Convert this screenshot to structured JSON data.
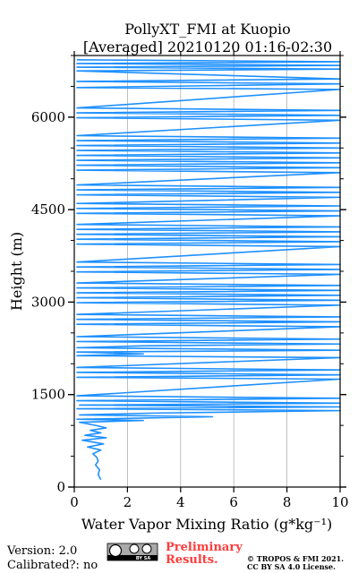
{
  "chart_data": {
    "type": "line",
    "title_line1": "PollyXT_FMI at Kuopio",
    "title_line2": "[Averaged] 20210120 01:16-02:30",
    "xlabel": "Water Vapor Mixing Ratio (g*kg⁻¹)",
    "ylabel": "Height (m)",
    "xlim": [
      0,
      10
    ],
    "ylim": [
      0,
      7000
    ],
    "xticks": [
      0,
      2,
      4,
      6,
      8,
      10
    ],
    "xtick_labels": [
      "0",
      "2",
      "4",
      "6",
      "8",
      "10"
    ],
    "yticks": [
      0,
      1500,
      3000,
      4500,
      6000
    ],
    "ytick_labels": [
      "0",
      "1500",
      "3000",
      "4500",
      "6000"
    ],
    "grid": "vertical",
    "series": [
      {
        "color": "#1e90ff",
        "points": [
          [
            1.0,
            120
          ],
          [
            0.9,
            200
          ],
          [
            0.95,
            280
          ],
          [
            0.8,
            360
          ],
          [
            0.9,
            420
          ],
          [
            0.85,
            480
          ],
          [
            0.7,
            540
          ],
          [
            1.0,
            600
          ],
          [
            0.5,
            650
          ],
          [
            1.1,
            700
          ],
          [
            0.3,
            760
          ],
          [
            1.2,
            800
          ],
          [
            0.4,
            840
          ],
          [
            1.0,
            880
          ],
          [
            0.6,
            920
          ],
          [
            1.2,
            960
          ],
          [
            0.8,
            1000
          ],
          [
            0.2,
            1050
          ],
          [
            2.6,
            1080
          ],
          [
            0.1,
            1100
          ],
          [
            5.2,
            1140
          ],
          [
            0.2,
            1170
          ],
          [
            3.0,
            1200
          ],
          [
            10.0,
            1240
          ],
          [
            0.1,
            1270
          ],
          [
            10.0,
            1300
          ],
          [
            0.2,
            1330
          ],
          [
            10.0,
            1360
          ],
          [
            0.1,
            1400
          ],
          [
            10.0,
            1440
          ],
          [
            0.1,
            1480
          ],
          [
            10.0,
            1750
          ],
          [
            0.1,
            1780
          ],
          [
            10.0,
            1820
          ],
          [
            0.1,
            1860
          ],
          [
            10.0,
            1900
          ],
          [
            0.1,
            1940
          ],
          [
            10.0,
            2100
          ],
          [
            0.1,
            2130
          ],
          [
            2.6,
            2160
          ],
          [
            0.1,
            2190
          ],
          [
            10.0,
            2220
          ],
          [
            0.1,
            2260
          ],
          [
            2.5,
            2290
          ],
          [
            10.0,
            2320
          ],
          [
            0.1,
            2360
          ],
          [
            10.0,
            2400
          ],
          [
            0.1,
            2440
          ],
          [
            10.0,
            2600
          ],
          [
            0.1,
            2640
          ],
          [
            10.0,
            2680
          ],
          [
            0.1,
            2720
          ],
          [
            10.0,
            2760
          ],
          [
            0.1,
            2800
          ],
          [
            10.0,
            2950
          ],
          [
            0.1,
            2990
          ],
          [
            10.0,
            3030
          ],
          [
            0.1,
            3070
          ],
          [
            10.0,
            3110
          ],
          [
            0.1,
            3150
          ],
          [
            10.0,
            3190
          ],
          [
            0.1,
            3230
          ],
          [
            10.0,
            3270
          ],
          [
            0.1,
            3310
          ],
          [
            10.0,
            3450
          ],
          [
            0.1,
            3490
          ],
          [
            10.0,
            3530
          ],
          [
            0.1,
            3570
          ],
          [
            10.0,
            3610
          ],
          [
            0.1,
            3650
          ],
          [
            10.0,
            3900
          ],
          [
            0.1,
            3940
          ],
          [
            10.0,
            3980
          ],
          [
            0.1,
            4020
          ],
          [
            10.0,
            4060
          ],
          [
            0.1,
            4100
          ],
          [
            10.0,
            4140
          ],
          [
            0.1,
            4180
          ],
          [
            10.0,
            4220
          ],
          [
            0.1,
            4260
          ],
          [
            10.0,
            4400
          ],
          [
            0.1,
            4440
          ],
          [
            10.0,
            4480
          ],
          [
            0.1,
            4520
          ],
          [
            10.0,
            4560
          ],
          [
            0.1,
            4600
          ],
          [
            10.0,
            4700
          ],
          [
            0.1,
            4740
          ],
          [
            10.0,
            4780
          ],
          [
            0.1,
            4820
          ],
          [
            10.0,
            4860
          ],
          [
            0.1,
            4900
          ],
          [
            10.0,
            5100
          ],
          [
            0.1,
            5140
          ],
          [
            10.0,
            5180
          ],
          [
            0.1,
            5220
          ],
          [
            10.0,
            5260
          ],
          [
            0.1,
            5300
          ],
          [
            10.0,
            5340
          ],
          [
            0.1,
            5380
          ],
          [
            10.0,
            5420
          ],
          [
            0.1,
            5460
          ],
          [
            10.0,
            5500
          ],
          [
            0.1,
            5540
          ],
          [
            10.0,
            5580
          ],
          [
            0.1,
            5620
          ],
          [
            10.0,
            5660
          ],
          [
            0.1,
            5700
          ],
          [
            10.0,
            5950
          ],
          [
            0.1,
            5990
          ],
          [
            10.0,
            6030
          ],
          [
            0.1,
            6070
          ],
          [
            10.0,
            6110
          ],
          [
            0.1,
            6150
          ],
          [
            10.0,
            6450
          ],
          [
            0.1,
            6480
          ],
          [
            5.0,
            6510
          ],
          [
            10.0,
            6540
          ],
          [
            0.1,
            6580
          ],
          [
            10.0,
            6620
          ],
          [
            0.1,
            6750
          ],
          [
            10.0,
            6780
          ],
          [
            0.1,
            6810
          ],
          [
            10.0,
            6840
          ],
          [
            0.1,
            6870
          ],
          [
            10.0,
            6900
          ],
          [
            0.1,
            6930
          ]
        ]
      }
    ]
  },
  "footer": {
    "version": "Version: 2.0",
    "calibrated": "Calibrated?: no",
    "prelim_line1": "Preliminary",
    "prelim_line2": "Results.",
    "copyright_line1": "© TROPOS & FMI 2021.",
    "copyright_line2": "CC BY SA 4.0 License.",
    "cc_badge_text": "BY SA"
  }
}
